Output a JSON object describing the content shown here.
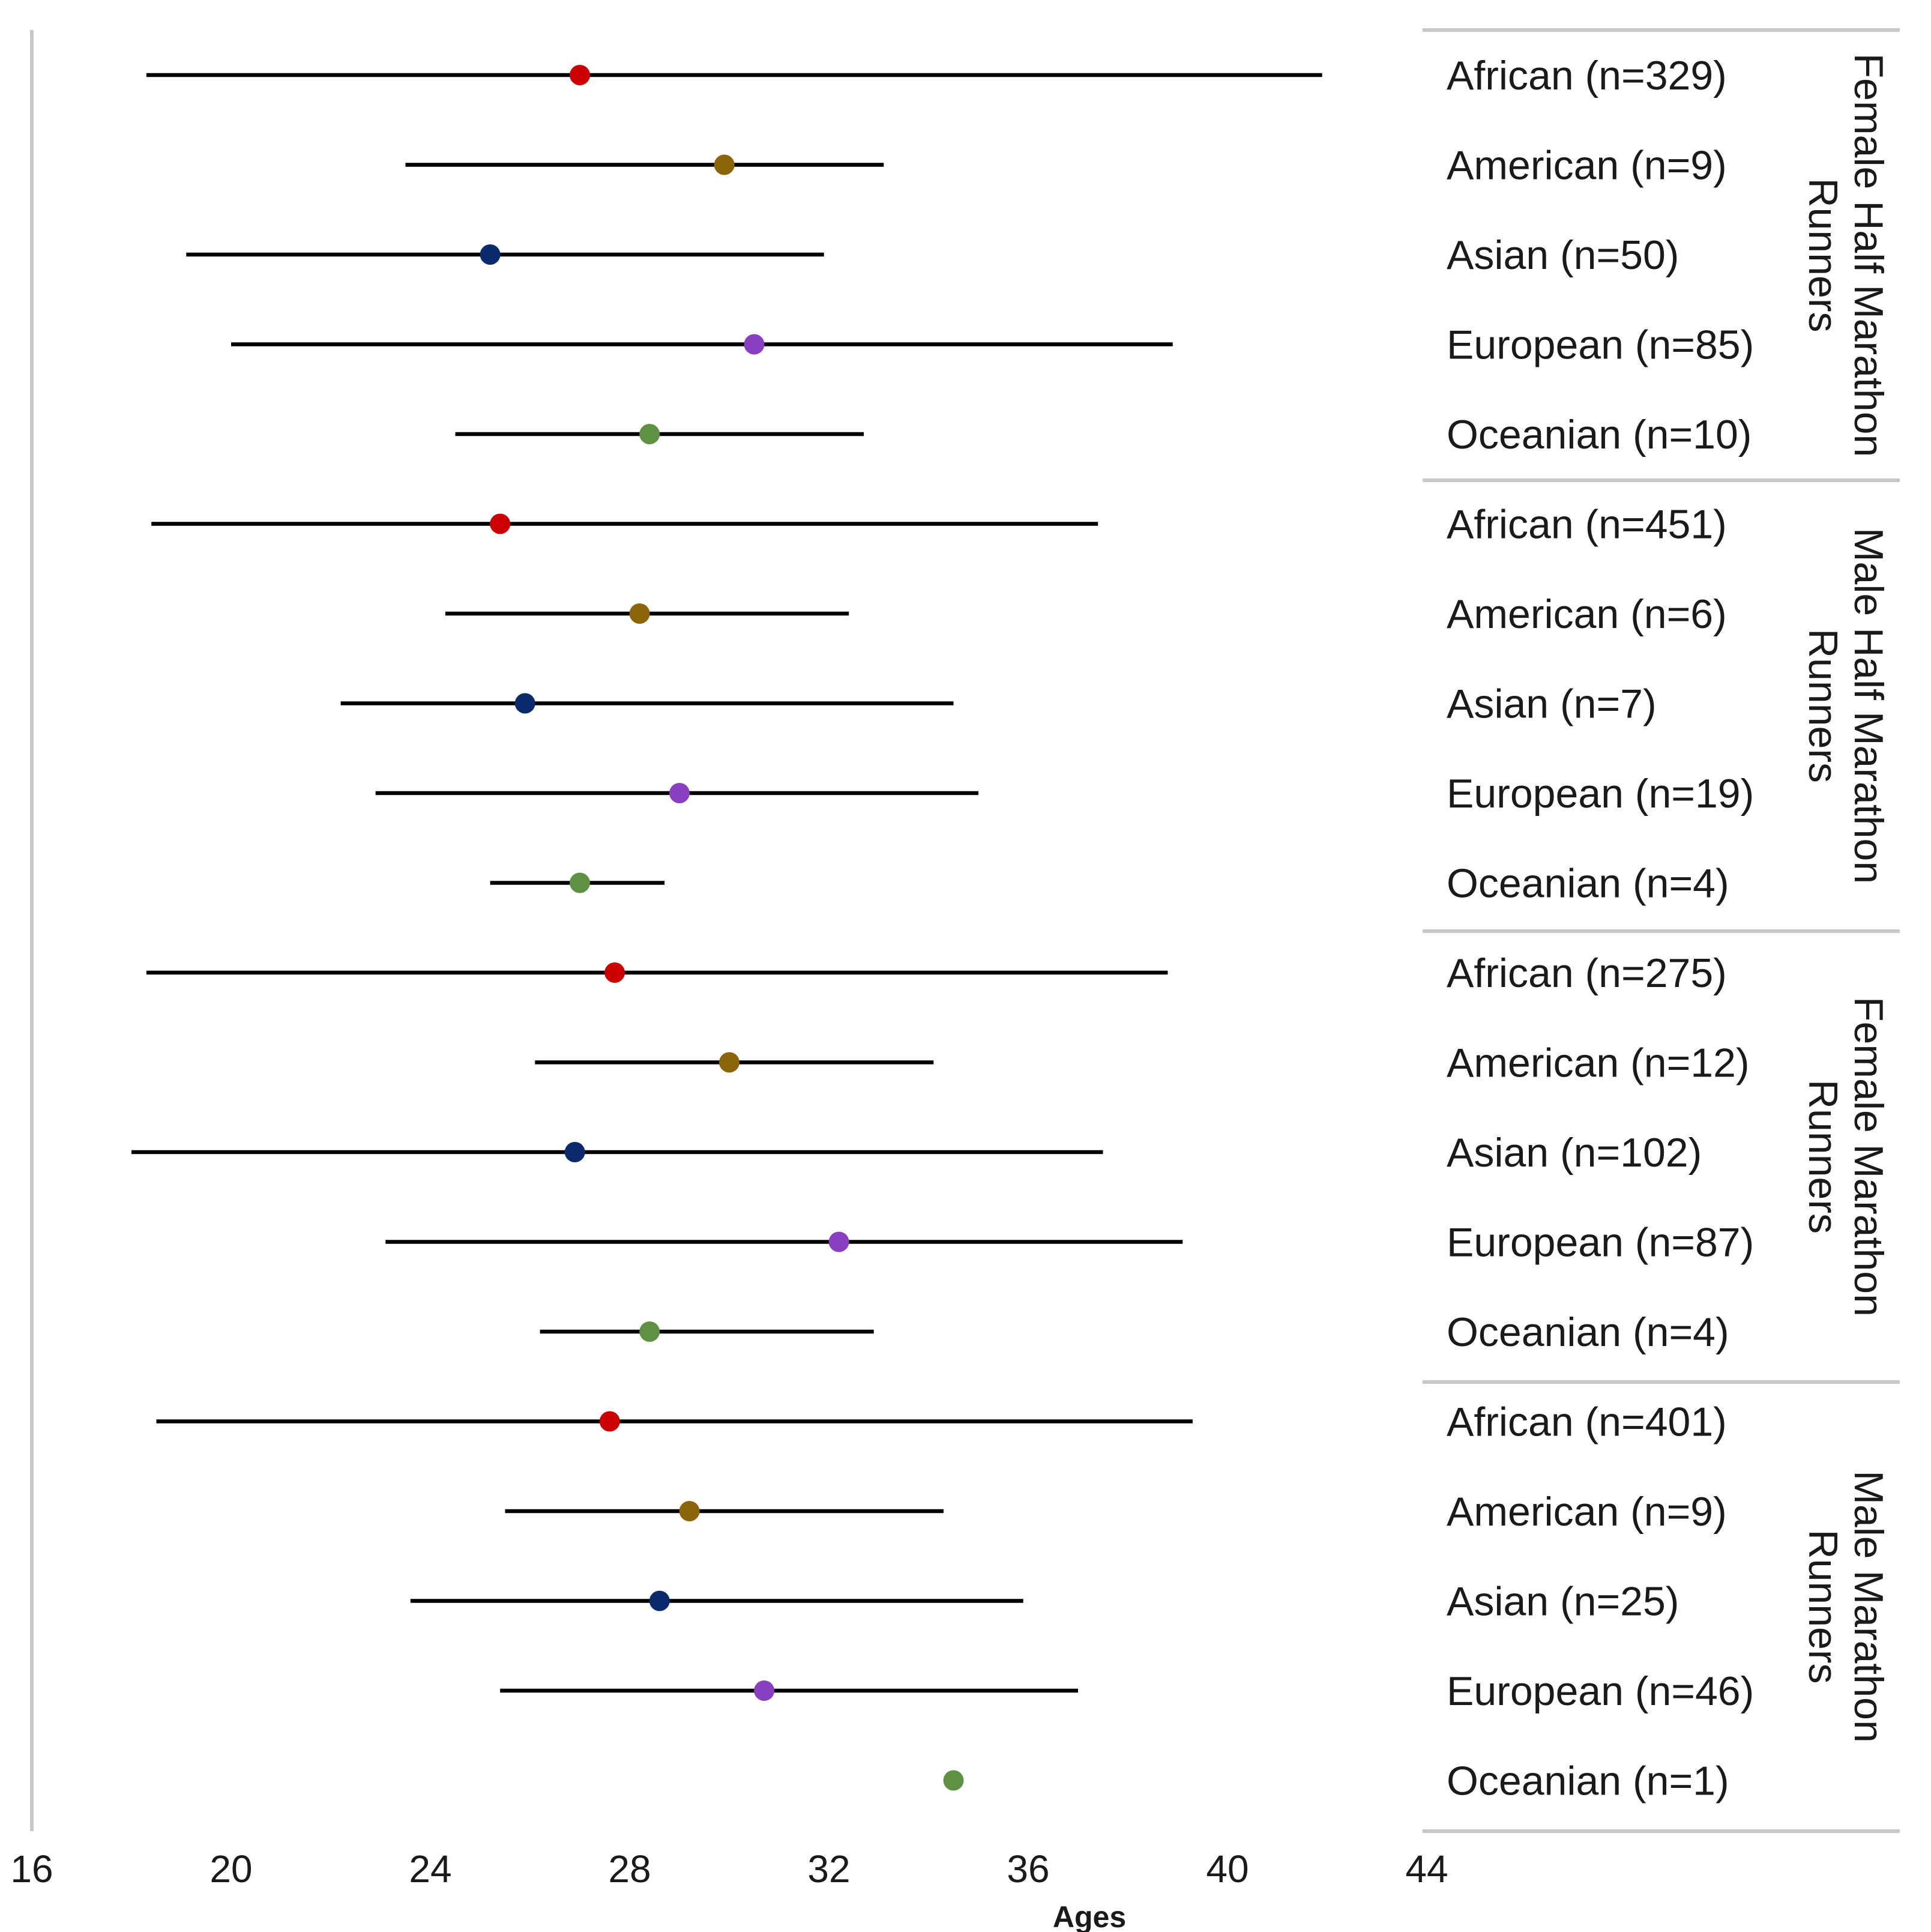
{
  "chart_data": {
    "type": "forest",
    "xlabel": "Ages",
    "xlim": [
      16,
      44
    ],
    "xticks": [
      "16",
      "20",
      "24",
      "28",
      "32",
      "36",
      "40",
      "44"
    ],
    "colors": {
      "African": "#cc0000",
      "American": "#8b6508",
      "Asian": "#0a2a6b",
      "European": "#8a3fc0",
      "Oceanian": "#5e9141"
    },
    "groups": [
      {
        "name": "Female Half Marathon Runners",
        "label_lines": [
          "Female Half Marathon",
          "Runners"
        ],
        "rows": [
          {
            "region": "African",
            "label": "African (n=329)",
            "mean": 27.0,
            "low": 18.3,
            "high": 41.9
          },
          {
            "region": "American",
            "label": "American (n=9)",
            "mean": 29.9,
            "low": 23.5,
            "high": 33.1
          },
          {
            "region": "Asian",
            "label": "Asian (n=50)",
            "mean": 25.2,
            "low": 19.1,
            "high": 31.9
          },
          {
            "region": "European",
            "label": "European (n=85)",
            "mean": 30.5,
            "low": 20.0,
            "high": 38.9
          },
          {
            "region": "Oceanian",
            "label": "Oceanian (n=10)",
            "mean": 28.4,
            "low": 24.5,
            "high": 32.7
          }
        ]
      },
      {
        "name": "Male Half Marathon Runners",
        "label_lines": [
          "Male Half Marathon",
          "Runners"
        ],
        "rows": [
          {
            "region": "African",
            "label": "African (n=451)",
            "mean": 25.4,
            "low": 18.4,
            "high": 37.4
          },
          {
            "region": "American",
            "label": "American (n=6)",
            "mean": 28.2,
            "low": 24.3,
            "high": 32.4
          },
          {
            "region": "Asian",
            "label": "Asian (n=7)",
            "mean": 25.9,
            "low": 22.2,
            "high": 34.5
          },
          {
            "region": "European",
            "label": "European (n=19)",
            "mean": 29.0,
            "low": 22.9,
            "high": 35.0
          },
          {
            "region": "Oceanian",
            "label": "Oceanian (n=4)",
            "mean": 27.0,
            "low": 25.2,
            "high": 28.7
          }
        ]
      },
      {
        "name": "Female Marathon Runners",
        "label_lines": [
          "Female Marathon",
          "Runners"
        ],
        "rows": [
          {
            "region": "African",
            "label": "African (n=275)",
            "mean": 27.7,
            "low": 18.3,
            "high": 38.8
          },
          {
            "region": "American",
            "label": "American (n=12)",
            "mean": 30.0,
            "low": 26.1,
            "high": 34.1
          },
          {
            "region": "Asian",
            "label": "Asian (n=102)",
            "mean": 26.9,
            "low": 18.0,
            "high": 37.5
          },
          {
            "region": "European",
            "label": "European (n=87)",
            "mean": 32.2,
            "low": 23.1,
            "high": 39.1
          },
          {
            "region": "Oceanian",
            "label": "Oceanian (n=4)",
            "mean": 28.4,
            "low": 26.2,
            "high": 32.9
          }
        ]
      },
      {
        "name": "Male Marathon Runners",
        "label_lines": [
          "Male Marathon",
          "Runners"
        ],
        "rows": [
          {
            "region": "African",
            "label": "African (n=401)",
            "mean": 27.6,
            "low": 18.5,
            "high": 39.3
          },
          {
            "region": "American",
            "label": "American (n=9)",
            "mean": 29.2,
            "low": 25.5,
            "high": 34.3
          },
          {
            "region": "Asian",
            "label": "Asian (n=25)",
            "mean": 28.6,
            "low": 23.6,
            "high": 35.9
          },
          {
            "region": "European",
            "label": "European (n=46)",
            "mean": 30.7,
            "low": 25.4,
            "high": 37.0
          },
          {
            "region": "Oceanian",
            "label": "Oceanian (n=1)",
            "mean": 34.5,
            "low": null,
            "high": null
          }
        ]
      }
    ]
  }
}
